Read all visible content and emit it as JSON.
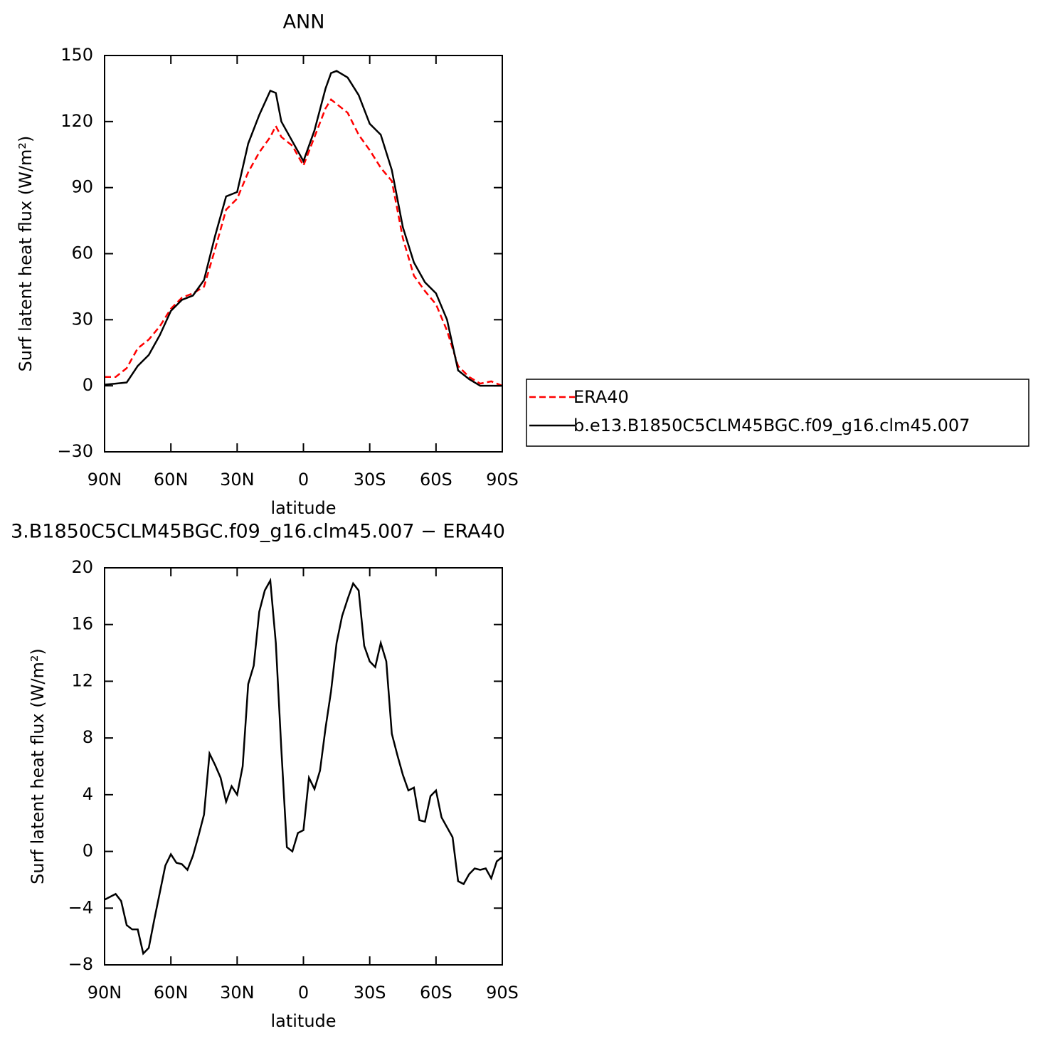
{
  "chart_data": [
    {
      "type": "line",
      "title": "ANN",
      "xlabel": "latitude",
      "ylabel": "Surf latent heat flux (W/m²)",
      "x": [
        90,
        85,
        80,
        75,
        70,
        65,
        60,
        55,
        50,
        45,
        40,
        35,
        30,
        25,
        20,
        15,
        12.5,
        10,
        5,
        0,
        -5,
        -10,
        -12.5,
        -15,
        -20,
        -25,
        -30,
        -35,
        -40,
        -45,
        -50,
        -55,
        -60,
        -65,
        -70,
        -75,
        -80,
        -85,
        -90
      ],
      "series": [
        {
          "name": "ERA40",
          "color": "#ff0000",
          "line_style": "dashed",
          "values": [
            4,
            4,
            8,
            17,
            21,
            27,
            35,
            40,
            42,
            45,
            62,
            80,
            85,
            97,
            106,
            113,
            118,
            113,
            109,
            100,
            113,
            126,
            130,
            128,
            124,
            114,
            107,
            99,
            93,
            67,
            50,
            43,
            37,
            25,
            9,
            4,
            1,
            2,
            0
          ]
        },
        {
          "name": "b.e13.B1850C5CLM45BGC.f09_g16.clm45.007",
          "color": "#000000",
          "line_style": "solid",
          "values": [
            0.5,
            1,
            1.5,
            9,
            14,
            23,
            34,
            39,
            41,
            48,
            68,
            86,
            88,
            110,
            123,
            134,
            133,
            120,
            111,
            102,
            116,
            135,
            142,
            143,
            140,
            132,
            119,
            114,
            98,
            72,
            56,
            47,
            42,
            30,
            7,
            3,
            0,
            0,
            0
          ]
        }
      ],
      "xlim": [
        90,
        -90
      ],
      "xticks": [
        {
          "value": 90,
          "label": "90N"
        },
        {
          "value": 60,
          "label": "60N"
        },
        {
          "value": 30,
          "label": "30N"
        },
        0,
        {
          "value": -30,
          "label": "30S"
        },
        {
          "value": -60,
          "label": "60S"
        },
        {
          "value": -90,
          "label": "90S"
        }
      ],
      "ylim": [
        -30,
        150
      ],
      "yticks": [
        {
          "value": -30,
          "label": "−30"
        },
        0,
        30,
        60,
        90,
        120,
        150
      ],
      "legend": "right"
    },
    {
      "type": "line",
      "title": "3.B1850C5CLM45BGC.f09_g16.clm45.007 − ERA40",
      "xlabel": "latitude",
      "ylabel": "Surf latent heat flux (W/m²)",
      "x": [
        90,
        87.5,
        85,
        82.5,
        80,
        77.5,
        75,
        72.5,
        70,
        67.5,
        65,
        62.5,
        60,
        57.5,
        55,
        52.5,
        50,
        47.5,
        45,
        42.5,
        40,
        37.5,
        35,
        32.5,
        30,
        27.5,
        25,
        22.5,
        20,
        17.5,
        15,
        12.5,
        10,
        7.5,
        5,
        2.5,
        0,
        -2.5,
        -5,
        -7.5,
        -10,
        -12.5,
        -15,
        -17.5,
        -20,
        -22.5,
        -25,
        -27.5,
        -30,
        -32.5,
        -35,
        -37.5,
        -40,
        -42.5,
        -45,
        -47.5,
        -50,
        -52.5,
        -55,
        -57.5,
        -60,
        -62.5,
        -65,
        -67.5,
        -70,
        -72.5,
        -75,
        -77.5,
        -80,
        -82.5,
        -85,
        -87.5,
        -90
      ],
      "series": [
        {
          "color": "#000000",
          "line_style": "solid",
          "values": [
            -3.4,
            -3.2,
            -3.0,
            -3.5,
            -5.2,
            -5.5,
            -5.5,
            -7.2,
            -6.8,
            -4.8,
            -2.9,
            -1.0,
            -0.2,
            -0.8,
            -0.9,
            -1.3,
            -0.3,
            1.1,
            2.6,
            6.9,
            6.1,
            5.2,
            3.5,
            4.6,
            4.0,
            6.0,
            11.8,
            13.1,
            16.9,
            18.4,
            19.1,
            14.7,
            7.2,
            0.3,
            0.0,
            1.3,
            1.5,
            5.2,
            4.4,
            5.7,
            8.7,
            11.3,
            14.7,
            16.6,
            17.8,
            18.9,
            18.4,
            14.5,
            13.4,
            13.0,
            14.7,
            13.4,
            8.3,
            6.8,
            5.4,
            4.3,
            4.5,
            2.2,
            2.1,
            3.9,
            4.3,
            2.4,
            1.7,
            1.0,
            -2.1,
            -2.3,
            -1.6,
            -1.2,
            -1.3,
            -1.2,
            -1.9,
            -0.7,
            -0.4
          ]
        }
      ],
      "xlim": [
        90,
        -90
      ],
      "xticks": [
        {
          "value": 90,
          "label": "90N"
        },
        {
          "value": 60,
          "label": "60N"
        },
        {
          "value": 30,
          "label": "30N"
        },
        0,
        {
          "value": -30,
          "label": "30S"
        },
        {
          "value": -60,
          "label": "60S"
        },
        {
          "value": -90,
          "label": "90S"
        }
      ],
      "ylim": [
        -8,
        20
      ],
      "yticks": [
        {
          "value": -8,
          "label": "−8"
        },
        {
          "value": -4,
          "label": "−4"
        },
        0,
        4,
        8,
        12,
        16,
        20
      ]
    }
  ]
}
